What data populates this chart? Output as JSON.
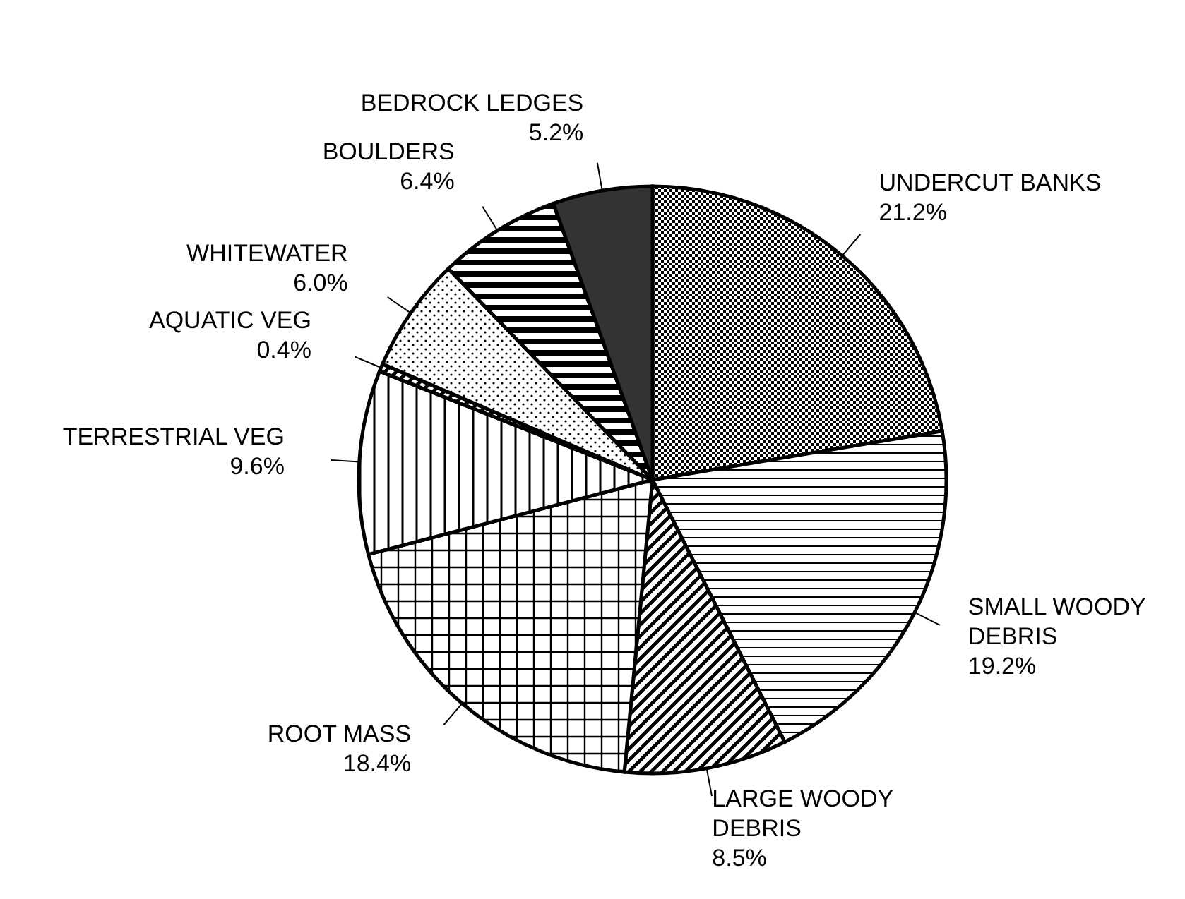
{
  "chart_data": {
    "type": "pie",
    "categories": [
      "UNDERCUT BANKS",
      "SMALL WOODY DEBRIS",
      "LARGE WOODY DEBRIS",
      "ROOT MASS",
      "TERRESTRIAL VEG",
      "AQUATIC VEG",
      "WHITEWATER",
      "BOULDERS",
      "BEDROCK LEDGES"
    ],
    "values": [
      21.2,
      19.2,
      8.5,
      18.4,
      9.6,
      0.4,
      6.0,
      6.4,
      5.2
    ],
    "value_labels": [
      "21.2%",
      "19.2%",
      "8.5%",
      "18.4%",
      "9.6%",
      "0.4%",
      "6.0%",
      "6.4%",
      "5.2%"
    ],
    "colors": [
      "#000000",
      "#000000",
      "#000000",
      "#000000",
      "#000000",
      "#000000",
      "#000000",
      "#000000",
      "#333333"
    ],
    "data_labels": false
  }
}
